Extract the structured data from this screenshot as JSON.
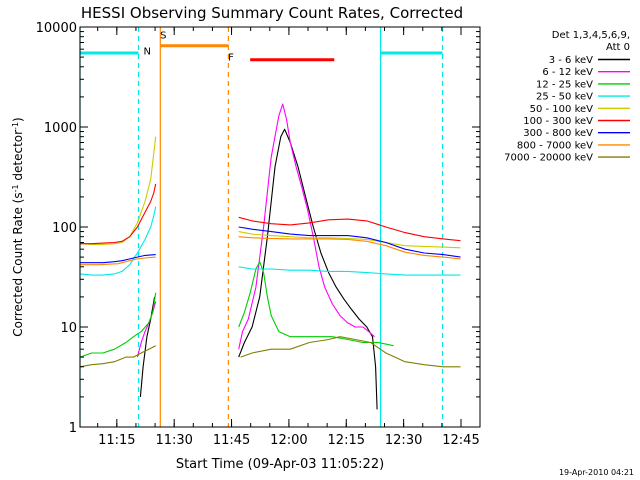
{
  "chart_data": {
    "type": "line",
    "title": "HESSI Observing Summary Count Rates, Corrected",
    "xlabel": "Start Time (09-Apr-03 11:05:22)",
    "ylabel_main": "Corrected Count Rate (s",
    "ylabel_sup1": "-1",
    "ylabel_mid": " detector",
    "ylabel_sup2": "-1",
    "ylabel_end": ")",
    "yscale": "log",
    "ylim": [
      1,
      10000
    ],
    "xlim_minutes": [
      0,
      104.6
    ],
    "xticks": [
      {
        "t": 9.63,
        "label": "11:15"
      },
      {
        "t": 24.63,
        "label": "11:30"
      },
      {
        "t": 39.63,
        "label": "11:45"
      },
      {
        "t": 54.63,
        "label": "12:00"
      },
      {
        "t": 69.63,
        "label": "12:15"
      },
      {
        "t": 84.63,
        "label": "12:30"
      },
      {
        "t": 99.63,
        "label": "12:45"
      }
    ],
    "yticks": [
      {
        "v": 1,
        "label": "1"
      },
      {
        "v": 10,
        "label": "10"
      },
      {
        "v": 100,
        "label": "100"
      },
      {
        "v": 1000,
        "label": "1000"
      },
      {
        "v": 10000,
        "label": "10000"
      }
    ],
    "legend_header": [
      "Det 1,3,4,5,6,9,",
      "Att 0"
    ],
    "legend_position": "right",
    "timestamp": "19-Apr-2010 04:21",
    "series": [
      {
        "name": "3 - 6 keV",
        "color": "#000000",
        "segments": [
          [
            [
              15.8,
              2
            ],
            [
              16.5,
              4
            ],
            [
              17.5,
              8
            ],
            [
              18.5,
              12
            ],
            [
              19.5,
              20
            ]
          ],
          [
            [
              41.5,
              5
            ],
            [
              43,
              7
            ],
            [
              45,
              10
            ],
            [
              47,
              20
            ],
            [
              49,
              80
            ],
            [
              51,
              400
            ],
            [
              52.5,
              800
            ],
            [
              53.5,
              950
            ],
            [
              55,
              700
            ],
            [
              57,
              400
            ],
            [
              59,
              200
            ],
            [
              61,
              100
            ],
            [
              63,
              55
            ],
            [
              65,
              35
            ],
            [
              67,
              25
            ],
            [
              69,
              19
            ],
            [
              71,
              15
            ],
            [
              73,
              12
            ],
            [
              75,
              10
            ],
            [
              76.5,
              8
            ],
            [
              77.3,
              4
            ],
            [
              77.7,
              1.5
            ]
          ]
        ]
      },
      {
        "name": "6 - 12 keV",
        "color": "#ff00ff",
        "segments": [
          [
            [
              15,
              5
            ],
            [
              16,
              7
            ],
            [
              17,
              9
            ],
            [
              18,
              11
            ],
            [
              19,
              14
            ],
            [
              19.8,
              18
            ]
          ],
          [
            [
              41.5,
              6
            ],
            [
              42.5,
              9
            ],
            [
              44,
              12
            ],
            [
              46,
              25
            ],
            [
              48,
              100
            ],
            [
              50,
              500
            ],
            [
              52,
              1300
            ],
            [
              53,
              1700
            ],
            [
              54,
              1200
            ],
            [
              55,
              700
            ],
            [
              56.5,
              400
            ],
            [
              58,
              250
            ],
            [
              59.5,
              150
            ],
            [
              61,
              80
            ],
            [
              62.5,
              40
            ],
            [
              64,
              25
            ],
            [
              66,
              17
            ],
            [
              68,
              13
            ],
            [
              70,
              11
            ],
            [
              72,
              10
            ],
            [
              74,
              10
            ],
            [
              75.5,
              9
            ],
            [
              77,
              8
            ]
          ]
        ]
      },
      {
        "name": "12 - 25 keV",
        "color": "#00cc00",
        "segments": [
          [
            [
              0,
              5
            ],
            [
              3,
              5.5
            ],
            [
              6,
              5.5
            ],
            [
              9,
              6
            ],
            [
              12,
              7
            ],
            [
              14,
              8
            ],
            [
              16,
              9
            ],
            [
              18,
              11
            ],
            [
              19,
              14
            ],
            [
              19.8,
              22
            ]
          ],
          [
            [
              41.5,
              10
            ],
            [
              43,
              14
            ],
            [
              44.5,
              22
            ],
            [
              46,
              38
            ],
            [
              47,
              45
            ],
            [
              48,
              35
            ],
            [
              49,
              20
            ],
            [
              50,
              13
            ],
            [
              52,
              9
            ],
            [
              55,
              8
            ],
            [
              58,
              8
            ],
            [
              62,
              8
            ],
            [
              66,
              8
            ],
            [
              70,
              7.5
            ],
            [
              74,
              7
            ],
            [
              78,
              7
            ],
            [
              82,
              6.5
            ]
          ]
        ]
      },
      {
        "name": "25 - 50 keV",
        "color": "#00e8e8",
        "segments": [
          [
            [
              0,
              34
            ],
            [
              3,
              33
            ],
            [
              6,
              33
            ],
            [
              9,
              34
            ],
            [
              11,
              36
            ],
            [
              13,
              42
            ],
            [
              15,
              55
            ],
            [
              17,
              75
            ],
            [
              18.5,
              100
            ],
            [
              19.3,
              130
            ],
            [
              19.8,
              160
            ]
          ],
          [
            [
              41.5,
              40
            ],
            [
              45,
              38
            ],
            [
              50,
              38
            ],
            [
              55,
              37
            ],
            [
              60,
              37
            ],
            [
              65,
              36
            ],
            [
              70,
              36
            ],
            [
              75,
              35
            ],
            [
              80,
              34
            ],
            [
              85,
              33
            ],
            [
              90,
              33
            ],
            [
              95,
              33
            ],
            [
              99.5,
              33
            ]
          ]
        ]
      },
      {
        "name": "50 - 100 keV",
        "color": "#cccc00",
        "segments": [
          [
            [
              0,
              68
            ],
            [
              3,
              67
            ],
            [
              6,
              67
            ],
            [
              9,
              68
            ],
            [
              11,
              70
            ],
            [
              13,
              80
            ],
            [
              15,
              110
            ],
            [
              17,
              180
            ],
            [
              18.5,
              300
            ],
            [
              19.3,
              550
            ],
            [
              19.8,
              800
            ]
          ],
          [
            [
              41.5,
              90
            ],
            [
              45,
              85
            ],
            [
              50,
              82
            ],
            [
              55,
              80
            ],
            [
              60,
              78
            ],
            [
              65,
              78
            ],
            [
              70,
              77
            ],
            [
              75,
              75
            ],
            [
              80,
              70
            ],
            [
              85,
              65
            ],
            [
              90,
              64
            ],
            [
              95,
              63
            ],
            [
              99.5,
              62
            ]
          ]
        ]
      },
      {
        "name": "100 - 300 keV",
        "color": "#ff0000",
        "segments": [
          [
            [
              0,
              68
            ],
            [
              3,
              68
            ],
            [
              6,
              69
            ],
            [
              9,
              70
            ],
            [
              11,
              72
            ],
            [
              13,
              80
            ],
            [
              15,
              100
            ],
            [
              17,
              140
            ],
            [
              18.5,
              180
            ],
            [
              19.3,
              220
            ],
            [
              19.8,
              270
            ]
          ],
          [
            [
              41.5,
              125
            ],
            [
              45,
              115
            ],
            [
              50,
              108
            ],
            [
              55,
              105
            ],
            [
              60,
              110
            ],
            [
              65,
              118
            ],
            [
              70,
              120
            ],
            [
              75,
              115
            ],
            [
              80,
              100
            ],
            [
              85,
              88
            ],
            [
              90,
              80
            ],
            [
              95,
              76
            ],
            [
              99.5,
              73
            ]
          ]
        ]
      },
      {
        "name": "300 - 800 keV",
        "color": "#0000ff",
        "segments": [
          [
            [
              0,
              44
            ],
            [
              3,
              44
            ],
            [
              6,
              44
            ],
            [
              9,
              45
            ],
            [
              11,
              46
            ],
            [
              13,
              48
            ],
            [
              15,
              50
            ],
            [
              17,
              52
            ],
            [
              19.8,
              53
            ]
          ],
          [
            [
              41.5,
              100
            ],
            [
              45,
              95
            ],
            [
              50,
              90
            ],
            [
              55,
              85
            ],
            [
              60,
              82
            ],
            [
              65,
              82
            ],
            [
              70,
              82
            ],
            [
              75,
              78
            ],
            [
              80,
              70
            ],
            [
              85,
              60
            ],
            [
              90,
              55
            ],
            [
              95,
              53
            ],
            [
              99.5,
              50
            ]
          ]
        ]
      },
      {
        "name": "800 - 7000 keV",
        "color": "#ff8800",
        "segments": [
          [
            [
              0,
              42
            ],
            [
              5,
              42
            ],
            [
              10,
              43
            ],
            [
              13,
              46
            ],
            [
              15,
              48
            ],
            [
              17,
              49
            ],
            [
              19.8,
              50
            ]
          ],
          [
            [
              41.5,
              80
            ],
            [
              45,
              78
            ],
            [
              50,
              77
            ],
            [
              55,
              76
            ],
            [
              60,
              76
            ],
            [
              65,
              76
            ],
            [
              70,
              75
            ],
            [
              75,
              72
            ],
            [
              80,
              65
            ],
            [
              85,
              56
            ],
            [
              90,
              52
            ],
            [
              95,
              50
            ],
            [
              99.5,
              48
            ]
          ]
        ]
      },
      {
        "name": "7000 - 20000 keV",
        "color": "#808000",
        "segments": [
          [
            [
              0,
              4
            ],
            [
              3,
              4.2
            ],
            [
              6,
              4.3
            ],
            [
              9,
              4.5
            ],
            [
              12,
              5
            ],
            [
              14,
              5
            ],
            [
              16,
              5.5
            ],
            [
              18,
              6
            ],
            [
              19.8,
              6.5
            ]
          ],
          [
            [
              42,
              5
            ],
            [
              45,
              5.5
            ],
            [
              50,
              6
            ],
            [
              55,
              6
            ],
            [
              60,
              7
            ],
            [
              65,
              7.5
            ],
            [
              68,
              8
            ],
            [
              72,
              7.5
            ],
            [
              76,
              7
            ],
            [
              80,
              5.5
            ],
            [
              85,
              4.5
            ],
            [
              90,
              4.2
            ],
            [
              95,
              4
            ],
            [
              99.5,
              4
            ]
          ]
        ]
      }
    ],
    "vertical_lines": [
      {
        "t": 0,
        "color": "#00e8e8",
        "style": "solid"
      },
      {
        "t": 15.3,
        "color": "#00e8e8",
        "style": "dashed"
      },
      {
        "t": 21,
        "color": "#ff8800",
        "style": "solid"
      },
      {
        "t": 38.8,
        "color": "#ff8800",
        "style": "dashed"
      },
      {
        "t": 78.6,
        "color": "#00e8e8",
        "style": "solid"
      },
      {
        "t": 94.8,
        "color": "#00e8e8",
        "style": "dashed"
      }
    ],
    "intervals": [
      {
        "t0": 0,
        "t1": 15.3,
        "value": 5500,
        "color": "#00e8e8"
      },
      {
        "t0": 78.6,
        "t1": 94.8,
        "value": 5500,
        "color": "#00e8e8"
      },
      {
        "t0": 21,
        "t1": 38.8,
        "value": 6500,
        "color": "#ff8800"
      },
      {
        "t0": 44.5,
        "t1": 66.5,
        "value": 4700,
        "color": "#ff0000"
      }
    ],
    "markers": [
      {
        "text": "N",
        "t": 17.6,
        "value": 5300,
        "color": "#00e8e8"
      },
      {
        "text": "S",
        "t": 21.8,
        "value": 7700,
        "color": "#ff8800"
      },
      {
        "text": "F",
        "t": 39.5,
        "value": 4600,
        "color": "#ff0000"
      }
    ]
  }
}
